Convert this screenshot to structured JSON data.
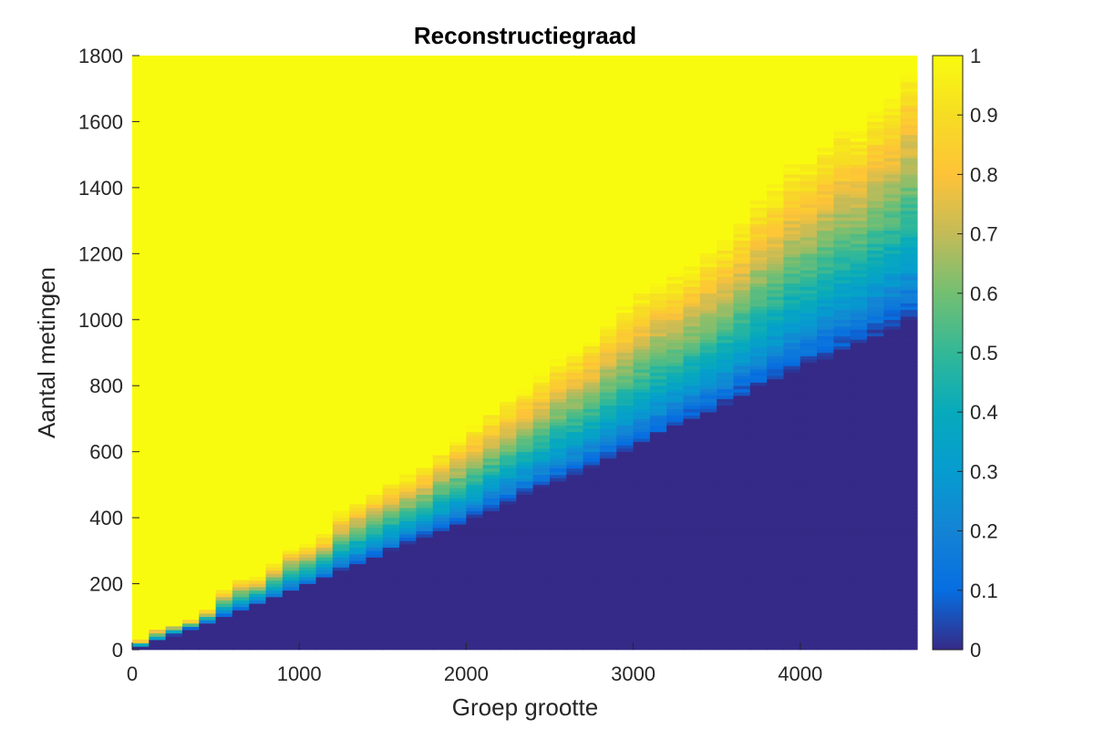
{
  "chart_data": {
    "type": "heatmap",
    "title": "Reconstructiegraad",
    "xlabel": "Groep grootte",
    "ylabel": "Aantal metingen",
    "xlim": [
      0,
      4700
    ],
    "ylim": [
      0,
      1800
    ],
    "x_ticks": [
      0,
      1000,
      2000,
      3000,
      4000
    ],
    "y_ticks": [
      0,
      200,
      400,
      600,
      800,
      1000,
      1200,
      1400,
      1600,
      1800
    ],
    "x_tick_labels": [
      "0",
      "1000",
      "2000",
      "3000",
      "4000"
    ],
    "y_tick_labels": [
      "0",
      "200",
      "400",
      "600",
      "800",
      "1000",
      "1200",
      "1400",
      "1600",
      "1800"
    ],
    "colorbar": {
      "range": [
        0,
        1
      ],
      "ticks": [
        0,
        0.1,
        0.2,
        0.3,
        0.4,
        0.5,
        0.6,
        0.7,
        0.8,
        0.9,
        1
      ],
      "tick_labels": [
        "0",
        "0.1",
        "0.2",
        "0.3",
        "0.4",
        "0.5",
        "0.6",
        "0.7",
        "0.8",
        "0.9",
        "1"
      ],
      "colormap": "parula"
    },
    "grid": false,
    "columns": {
      "x_start": 0,
      "x_step": 100,
      "count": 47
    },
    "rows": {
      "y_step": 10
    },
    "transition": {
      "description_of_values": "value is 0 below the onset measurement count and 1 above the saturation measurement count for each group size",
      "group_size": [
        0,
        500,
        1000,
        1500,
        2000,
        2500,
        3000,
        3500,
        4000,
        4500,
        4700
      ],
      "onset_measurements": [
        0,
        90,
        185,
        290,
        390,
        500,
        610,
        730,
        850,
        960,
        1000
      ],
      "saturation_measurements": [
        10,
        150,
        310,
        500,
        660,
        860,
        1060,
        1230,
        1480,
        1650,
        1800
      ]
    }
  }
}
